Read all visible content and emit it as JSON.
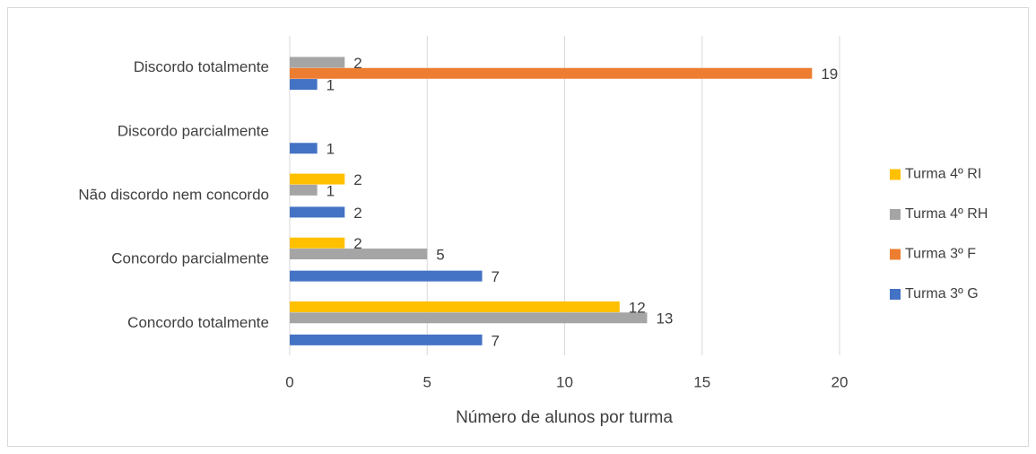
{
  "chart_data": {
    "type": "bar",
    "orientation": "horizontal",
    "x_label": "Número de alunos por turma",
    "categories": [
      "Concordo totalmente",
      "Concordo parcialmente",
      "Não discordo nem concordo",
      "Discordo parcialmente",
      "Discordo totalmente"
    ],
    "series": [
      {
        "name": "Turma 3º G",
        "color": "#4472c4",
        "values": [
          7,
          7,
          2,
          1,
          1
        ]
      },
      {
        "name": "Turma 3º F",
        "color": "#ed7d31",
        "values": [
          null,
          null,
          null,
          null,
          19
        ]
      },
      {
        "name": "Turma 4º RH",
        "color": "#a5a5a5",
        "values": [
          13,
          5,
          1,
          null,
          2
        ]
      },
      {
        "name": "Turma 4º RI",
        "color": "#ffc000",
        "values": [
          12,
          2,
          2,
          null,
          null
        ]
      }
    ],
    "xlim": [
      0,
      20
    ],
    "xticks": [
      0,
      5,
      10,
      15,
      20
    ],
    "grid": true,
    "legend": "right"
  }
}
